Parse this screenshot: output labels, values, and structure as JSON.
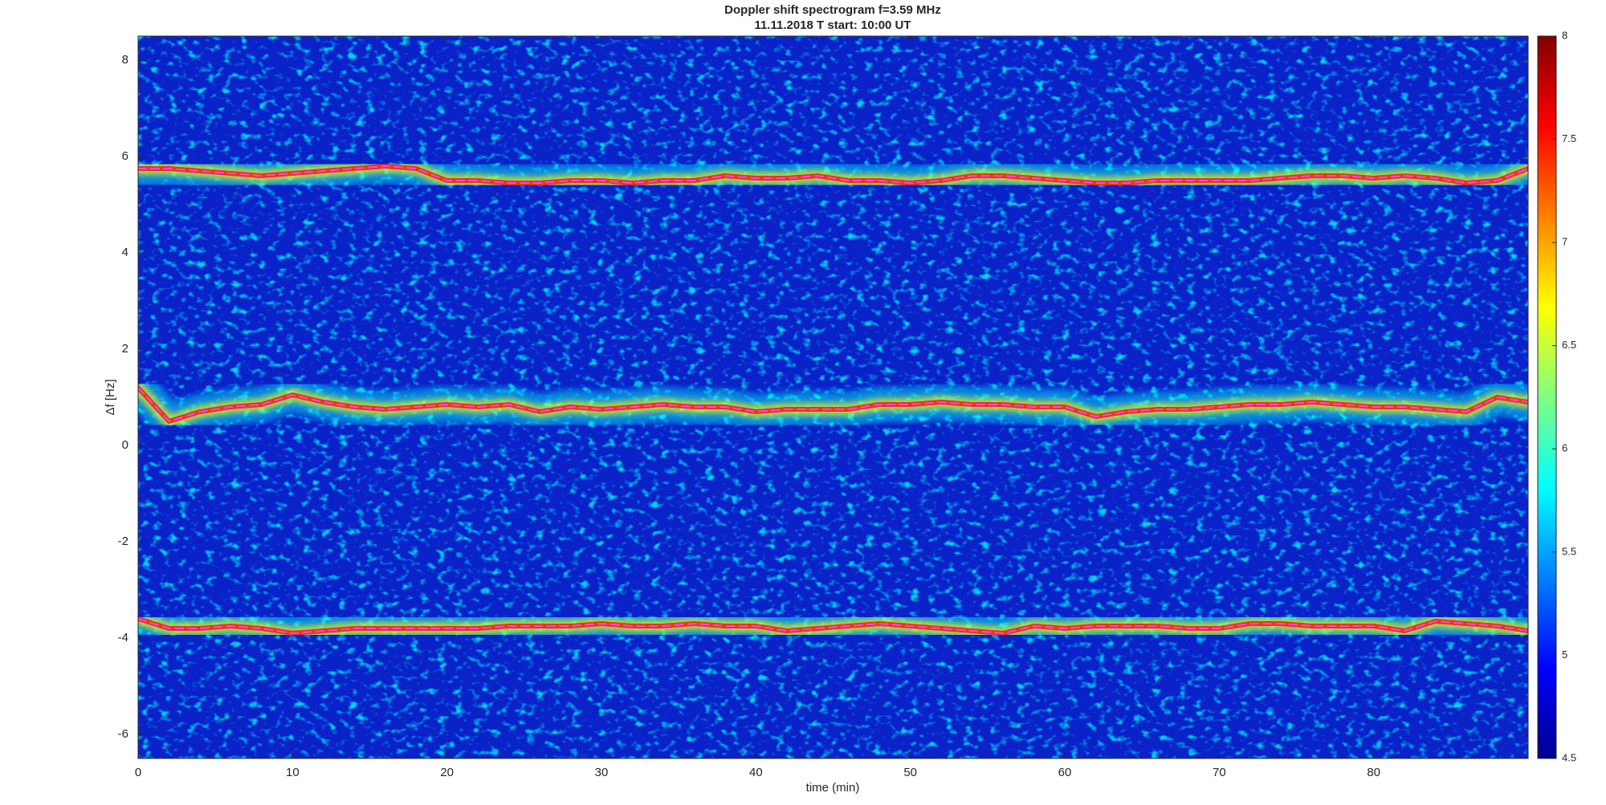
{
  "chart_data": {
    "type": "spectrogram",
    "title": "Doppler shift spectrogram f=3.59 MHz",
    "subtitle": "11.11.2018   T start: 10:00 UT",
    "xlabel": "time (min)",
    "ylabel": "Δf [Hz]",
    "xlim": [
      0,
      90
    ],
    "xticks": [
      0,
      10,
      20,
      30,
      40,
      50,
      60,
      70,
      80
    ],
    "ylim": [
      -6.5,
      8.5
    ],
    "yticks": [
      -6,
      -4,
      -2,
      0,
      2,
      4,
      6,
      8
    ],
    "clim": [
      4.5,
      8
    ],
    "cticks": [
      4.5,
      5,
      5.5,
      6,
      6.5,
      7,
      7.5,
      8
    ],
    "colormap": [
      "#00008f",
      "#0000ff",
      "#0080ff",
      "#00ffff",
      "#80ff80",
      "#ffff00",
      "#ff8000",
      "#ff0000",
      "#800000"
    ],
    "x": [
      0,
      2,
      4,
      6,
      8,
      10,
      12,
      14,
      16,
      18,
      20,
      22,
      24,
      26,
      28,
      30,
      32,
      34,
      36,
      38,
      40,
      42,
      44,
      46,
      48,
      50,
      52,
      54,
      56,
      58,
      60,
      62,
      64,
      66,
      68,
      70,
      72,
      74,
      76,
      78,
      80,
      82,
      84,
      86,
      88,
      90
    ],
    "series": [
      {
        "color": "#ff40ff",
        "values": [
          5.75,
          5.75,
          5.7,
          5.65,
          5.6,
          5.65,
          5.7,
          5.75,
          5.8,
          5.75,
          5.5,
          5.5,
          5.45,
          5.45,
          5.5,
          5.5,
          5.45,
          5.5,
          5.5,
          5.6,
          5.55,
          5.55,
          5.6,
          5.5,
          5.5,
          5.45,
          5.5,
          5.6,
          5.6,
          5.55,
          5.5,
          5.45,
          5.45,
          5.5,
          5.5,
          5.5,
          5.5,
          5.55,
          5.6,
          5.6,
          5.55,
          5.6,
          5.55,
          5.45,
          5.5,
          5.75
        ]
      },
      {
        "color": "#ff40ff",
        "values": [
          1.2,
          0.5,
          0.7,
          0.8,
          0.85,
          1.05,
          0.9,
          0.8,
          0.75,
          0.8,
          0.85,
          0.8,
          0.85,
          0.7,
          0.8,
          0.75,
          0.8,
          0.85,
          0.8,
          0.8,
          0.7,
          0.75,
          0.75,
          0.75,
          0.85,
          0.85,
          0.9,
          0.85,
          0.85,
          0.8,
          0.8,
          0.6,
          0.7,
          0.75,
          0.75,
          0.8,
          0.85,
          0.85,
          0.9,
          0.85,
          0.8,
          0.8,
          0.75,
          0.7,
          1.0,
          0.9
        ]
      },
      {
        "color": "#ff40ff",
        "values": [
          -3.6,
          -3.8,
          -3.8,
          -3.75,
          -3.8,
          -3.9,
          -3.85,
          -3.8,
          -3.8,
          -3.8,
          -3.8,
          -3.8,
          -3.75,
          -3.75,
          -3.75,
          -3.7,
          -3.75,
          -3.75,
          -3.7,
          -3.75,
          -3.75,
          -3.85,
          -3.8,
          -3.75,
          -3.7,
          -3.75,
          -3.8,
          -3.85,
          -3.9,
          -3.75,
          -3.8,
          -3.75,
          -3.75,
          -3.75,
          -3.8,
          -3.8,
          -3.7,
          -3.7,
          -3.75,
          -3.75,
          -3.75,
          -3.85,
          -3.65,
          -3.7,
          -3.75,
          -3.85
        ]
      }
    ]
  }
}
